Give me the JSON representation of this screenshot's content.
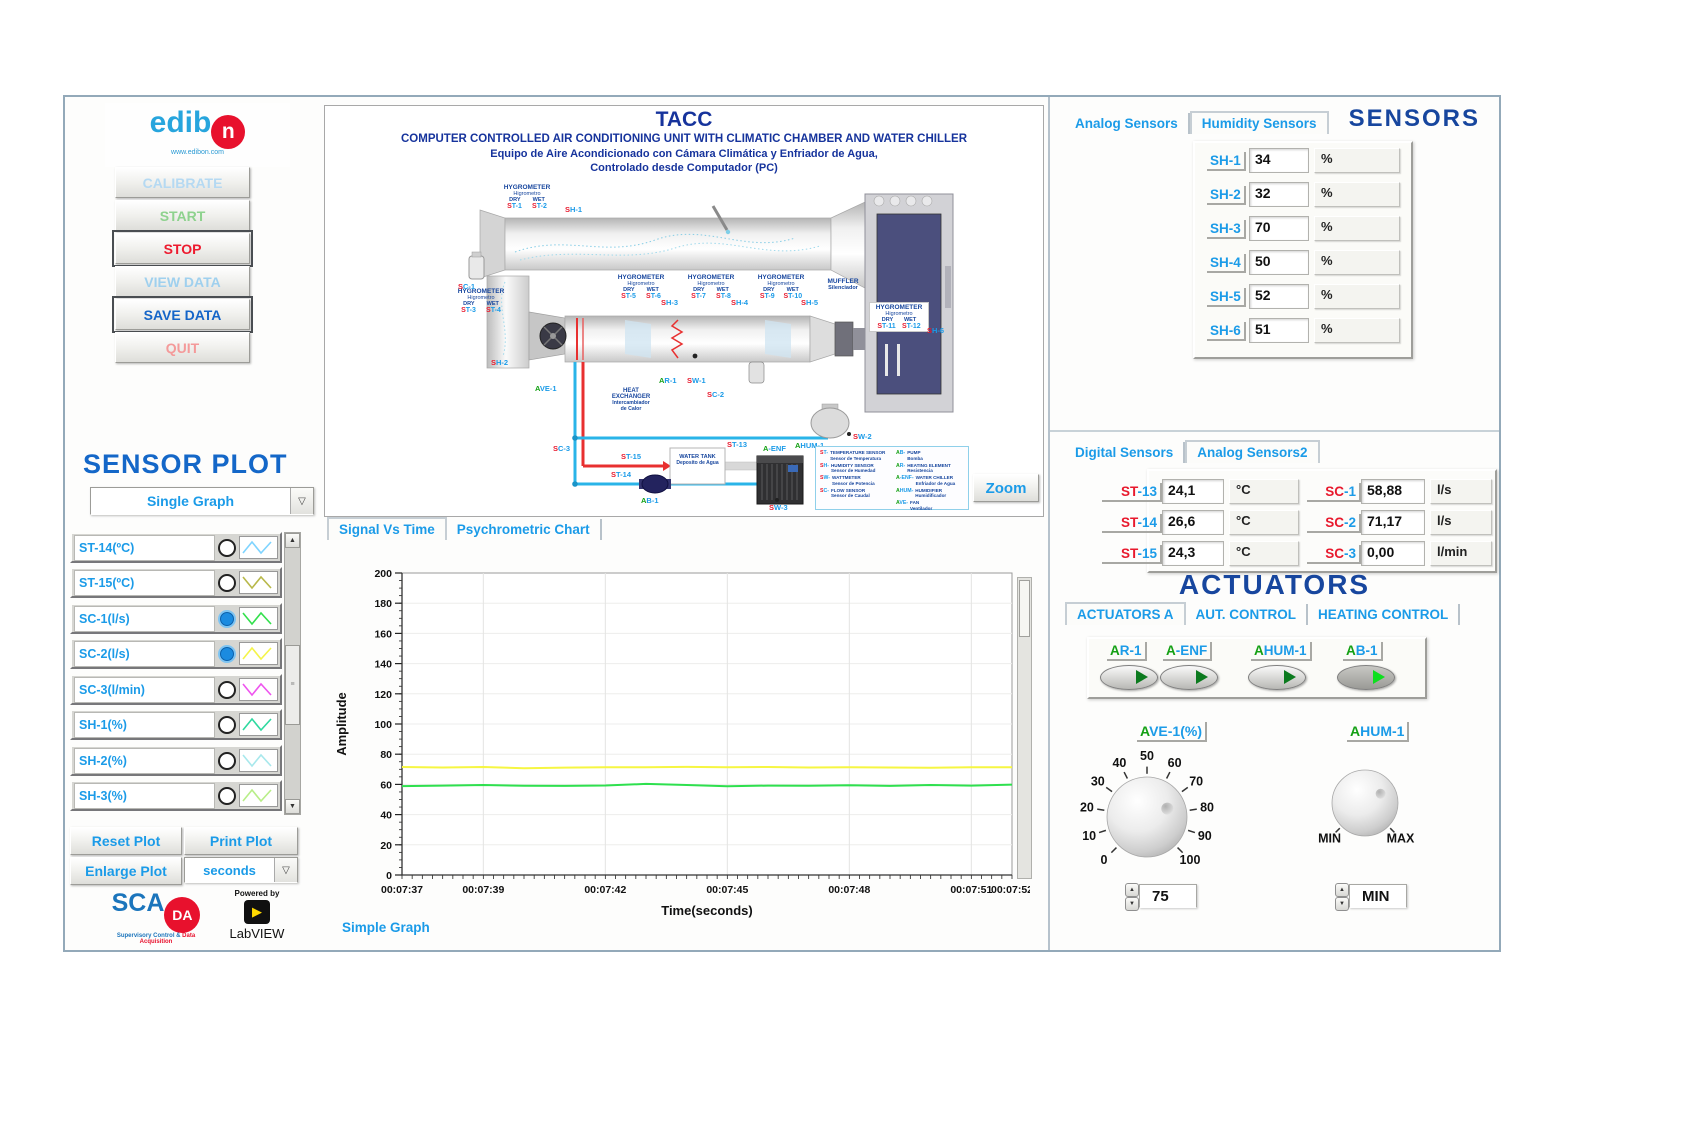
{
  "colors": {
    "accent": "#1b9be8",
    "navy": "#17469e",
    "red": "#e8192d",
    "green": "#14a014"
  },
  "sidebar": {
    "logo": {
      "brand_prefix": "edib",
      "brand_o": "n",
      "url": "www.edibon.com"
    },
    "buttons": [
      {
        "label": "CALIBRATE"
      },
      {
        "label": "START"
      },
      {
        "label": "STOP"
      },
      {
        "label": "VIEW DATA"
      },
      {
        "label": "SAVE DATA"
      },
      {
        "label": "QUIT"
      }
    ],
    "plot_title": "SENSOR PLOT",
    "graph_mode": "Single Graph",
    "sensors": [
      {
        "label": "ST-14(ºC)",
        "checked": false,
        "color": "#7fd4ff"
      },
      {
        "label": "ST-15(ºC)",
        "checked": false,
        "color": "#b8b84a"
      },
      {
        "label": "SC-1(l/s)",
        "checked": true,
        "color": "#33e04d"
      },
      {
        "label": "SC-2(l/s)",
        "checked": true,
        "color": "#f4f44a"
      },
      {
        "label": "SC-3(l/min)",
        "checked": false,
        "color": "#ee55ee"
      },
      {
        "label": "SH-1(%)",
        "checked": false,
        "color": "#2fd9a0"
      },
      {
        "label": "SH-2(%)",
        "checked": false,
        "color": "#a8e8ec"
      },
      {
        "label": "SH-3(%)",
        "checked": false,
        "color": "#b8ee88"
      }
    ],
    "reset_label": "Reset Plot",
    "print_label": "Print Plot",
    "enlarge_label": "Enlarge Plot",
    "time_unit": "seconds",
    "scada": {
      "part1": "SCA",
      "part2": "DA",
      "subtitle1": "Supervisory Control &",
      "subtitle2": "Data Acquisition"
    },
    "labview": {
      "powered": "Powered by",
      "name": "LabVIEW"
    }
  },
  "diagram": {
    "title": "TACC",
    "subtitle1": "COMPUTER CONTROLLED AIR CONDITIONING UNIT WITH CLIMATIC CHAMBER AND WATER CHILLER",
    "subtitle2": "Equipo de Aire Acondicionado con Cámara Climática y Enfriador de Agua,",
    "subtitle3": "Controlado desde Computador (PC)",
    "zoom_label": "Zoom",
    "hyg": {
      "title": "HYGROMETER",
      "subtitle": "Higrometro",
      "dry": "DRY",
      "wet": "WET"
    },
    "hyg_blocks": [
      {
        "t1": "ST-1",
        "t2": "ST-2"
      },
      {
        "t1": "ST-3",
        "t2": "ST-4"
      },
      {
        "t1": "ST-5",
        "t2": "ST-6"
      },
      {
        "t1": "ST-7",
        "t2": "ST-8"
      },
      {
        "t1": "ST-9",
        "t2": "ST-10"
      },
      {
        "t1": "ST-11",
        "t2": "ST-12"
      }
    ],
    "tags": {
      "sc1": "SC-1",
      "sc2": "SC-2",
      "sc3": "SC-3",
      "sh1": "SH-1",
      "sh2": "SH-2",
      "sh3": "SH-3",
      "sh4": "SH-4",
      "sh5": "SH-5",
      "sh6": "SH-6",
      "st13": "ST-13",
      "st14": "ST-14",
      "st15": "ST-15",
      "sw1": "SW-1",
      "sw2": "SW-2",
      "sw3": "SW-3",
      "ave1": "AVE-1",
      "ar1": "AR-1",
      "ab1": "AB-1",
      "aenf": "A-ENF",
      "ahum1": "AHUM-1"
    },
    "muffler": {
      "line1": "MUFFLER",
      "line2": "Silenciador"
    },
    "heat_exchanger": {
      "line1": "HEAT",
      "line2": "EXCHANGER",
      "line3": "Intercambiador",
      "line4": "de Calor"
    },
    "water_tank": {
      "line1": "WATER TANK",
      "line2": "Deposito de Agua"
    },
    "legend": [
      {
        "tag": "ST-",
        "name": "TEMPERATURE SENSOR",
        "name_es": "Sensor de Temperatura",
        "color": "red"
      },
      {
        "tag": "SH-",
        "name": "HUMIDITY SENSOR",
        "name_es": "Sensor de Humedad",
        "color": "red"
      },
      {
        "tag": "SW-",
        "name": "WATTMETER",
        "name_es": "Sensor de Potencia",
        "color": "red"
      },
      {
        "tag": "SC-",
        "name": "FLOW SENSOR",
        "name_es": "Sensor de Caudal",
        "color": "red"
      },
      {
        "tag": "AB-",
        "name": "PUMP",
        "name_es": "Bomba",
        "color": "green"
      },
      {
        "tag": "AR-",
        "name": "HEATING ELEMENT",
        "name_es": "Resistencia",
        "color": "green"
      },
      {
        "tag": "A-ENF-",
        "name": "WATER CHILLER",
        "name_es": "Enfriador de Agua",
        "color": "green"
      },
      {
        "tag": "AHUM-",
        "name": "HUMIDIFIER",
        "name_es": "Humidificador",
        "color": "green"
      },
      {
        "tag": "AVE-",
        "name": "FAN",
        "name_es": "Ventilador",
        "color": "green"
      }
    ]
  },
  "plot": {
    "tabs": [
      "Signal Vs Time",
      "Psychrometric Chart"
    ],
    "active_tab": 0,
    "footer": "Simple Graph"
  },
  "chart_data": {
    "type": "line",
    "title": "",
    "xlabel": "Time(seconds)",
    "ylabel": "Amplitude",
    "ylim": [
      0,
      200
    ],
    "ytick_step": 20,
    "y_minor_step": 5,
    "x_start_seconds": 457,
    "x_end_seconds": 472,
    "x_minor_step": 0.25,
    "xtick_labels": [
      "00:07:37",
      "00:07:39",
      "00:07:42",
      "00:07:45",
      "00:07:48",
      "00:07:51",
      "00:07:52"
    ],
    "xtick_seconds": [
      457,
      459,
      462,
      465,
      468,
      471,
      472
    ],
    "grid": true,
    "legend_position": "none",
    "series": [
      {
        "name": "SC-2(l/s)",
        "color": "#f6f642",
        "values": [
          71.5,
          71.2,
          71.5,
          70.7,
          71.1,
          71.4,
          71.3,
          71.6,
          71.3,
          71.5,
          71.2,
          71.4,
          71.2,
          71.0,
          71.4,
          71.3
        ]
      },
      {
        "name": "SC-1(l/s)",
        "color": "#2ee04e",
        "values": [
          58.9,
          59.2,
          59.6,
          59.1,
          59.0,
          59.3,
          60.3,
          59.6,
          58.8,
          59.2,
          59.1,
          59.4,
          59.0,
          59.6,
          59.2,
          59.9
        ]
      }
    ]
  },
  "sensors_panel": {
    "header": "SENSORS",
    "tabs": [
      "Analog Sensors",
      "Humidity Sensors"
    ],
    "active_tab": 1,
    "humidity_rows": [
      {
        "label": "SH-1",
        "value": "34",
        "unit": "%"
      },
      {
        "label": "SH-2",
        "value": "32",
        "unit": "%"
      },
      {
        "label": "SH-3",
        "value": "70",
        "unit": "%"
      },
      {
        "label": "SH-4",
        "value": "50",
        "unit": "%"
      },
      {
        "label": "SH-5",
        "value": "52",
        "unit": "%"
      },
      {
        "label": "SH-6",
        "value": "51",
        "unit": "%"
      }
    ]
  },
  "sensors2_panel": {
    "tabs": [
      "Digital Sensors",
      "Analog Sensors2"
    ],
    "active_tab": 1,
    "temperature_rows": [
      {
        "label": "ST-13",
        "value": "24,1",
        "unit": "°C"
      },
      {
        "label": "ST-14",
        "value": "26,6",
        "unit": "°C"
      },
      {
        "label": "ST-15",
        "value": "24,3",
        "unit": "°C"
      }
    ],
    "flow_rows": [
      {
        "label": "SC-1",
        "value": "58,88",
        "unit": "l/s"
      },
      {
        "label": "SC-2",
        "value": "71,17",
        "unit": "l/s"
      },
      {
        "label": "SC-3",
        "value": "0,00",
        "unit": "l/min"
      }
    ]
  },
  "actuators": {
    "header": "ACTUATORS",
    "tabs": [
      "ACTUATORS A",
      "AUT. CONTROL",
      "HEATING CONTROL"
    ],
    "active_tab": 0,
    "toggles": [
      {
        "label": "AR-1",
        "on": false
      },
      {
        "label": "A-ENF",
        "on": false
      },
      {
        "label": "AHUM-1",
        "on": false
      },
      {
        "label": "AB-1",
        "on": true
      }
    ],
    "ave_knob": {
      "label": "AVE-1(%)",
      "scale": [
        0,
        10,
        20,
        30,
        40,
        50,
        60,
        70,
        80,
        90,
        100
      ],
      "value": "75"
    },
    "ahum_knob": {
      "label": "AHUM-1",
      "min_label": "MIN",
      "max_label": "MAX",
      "value": "MIN"
    }
  }
}
